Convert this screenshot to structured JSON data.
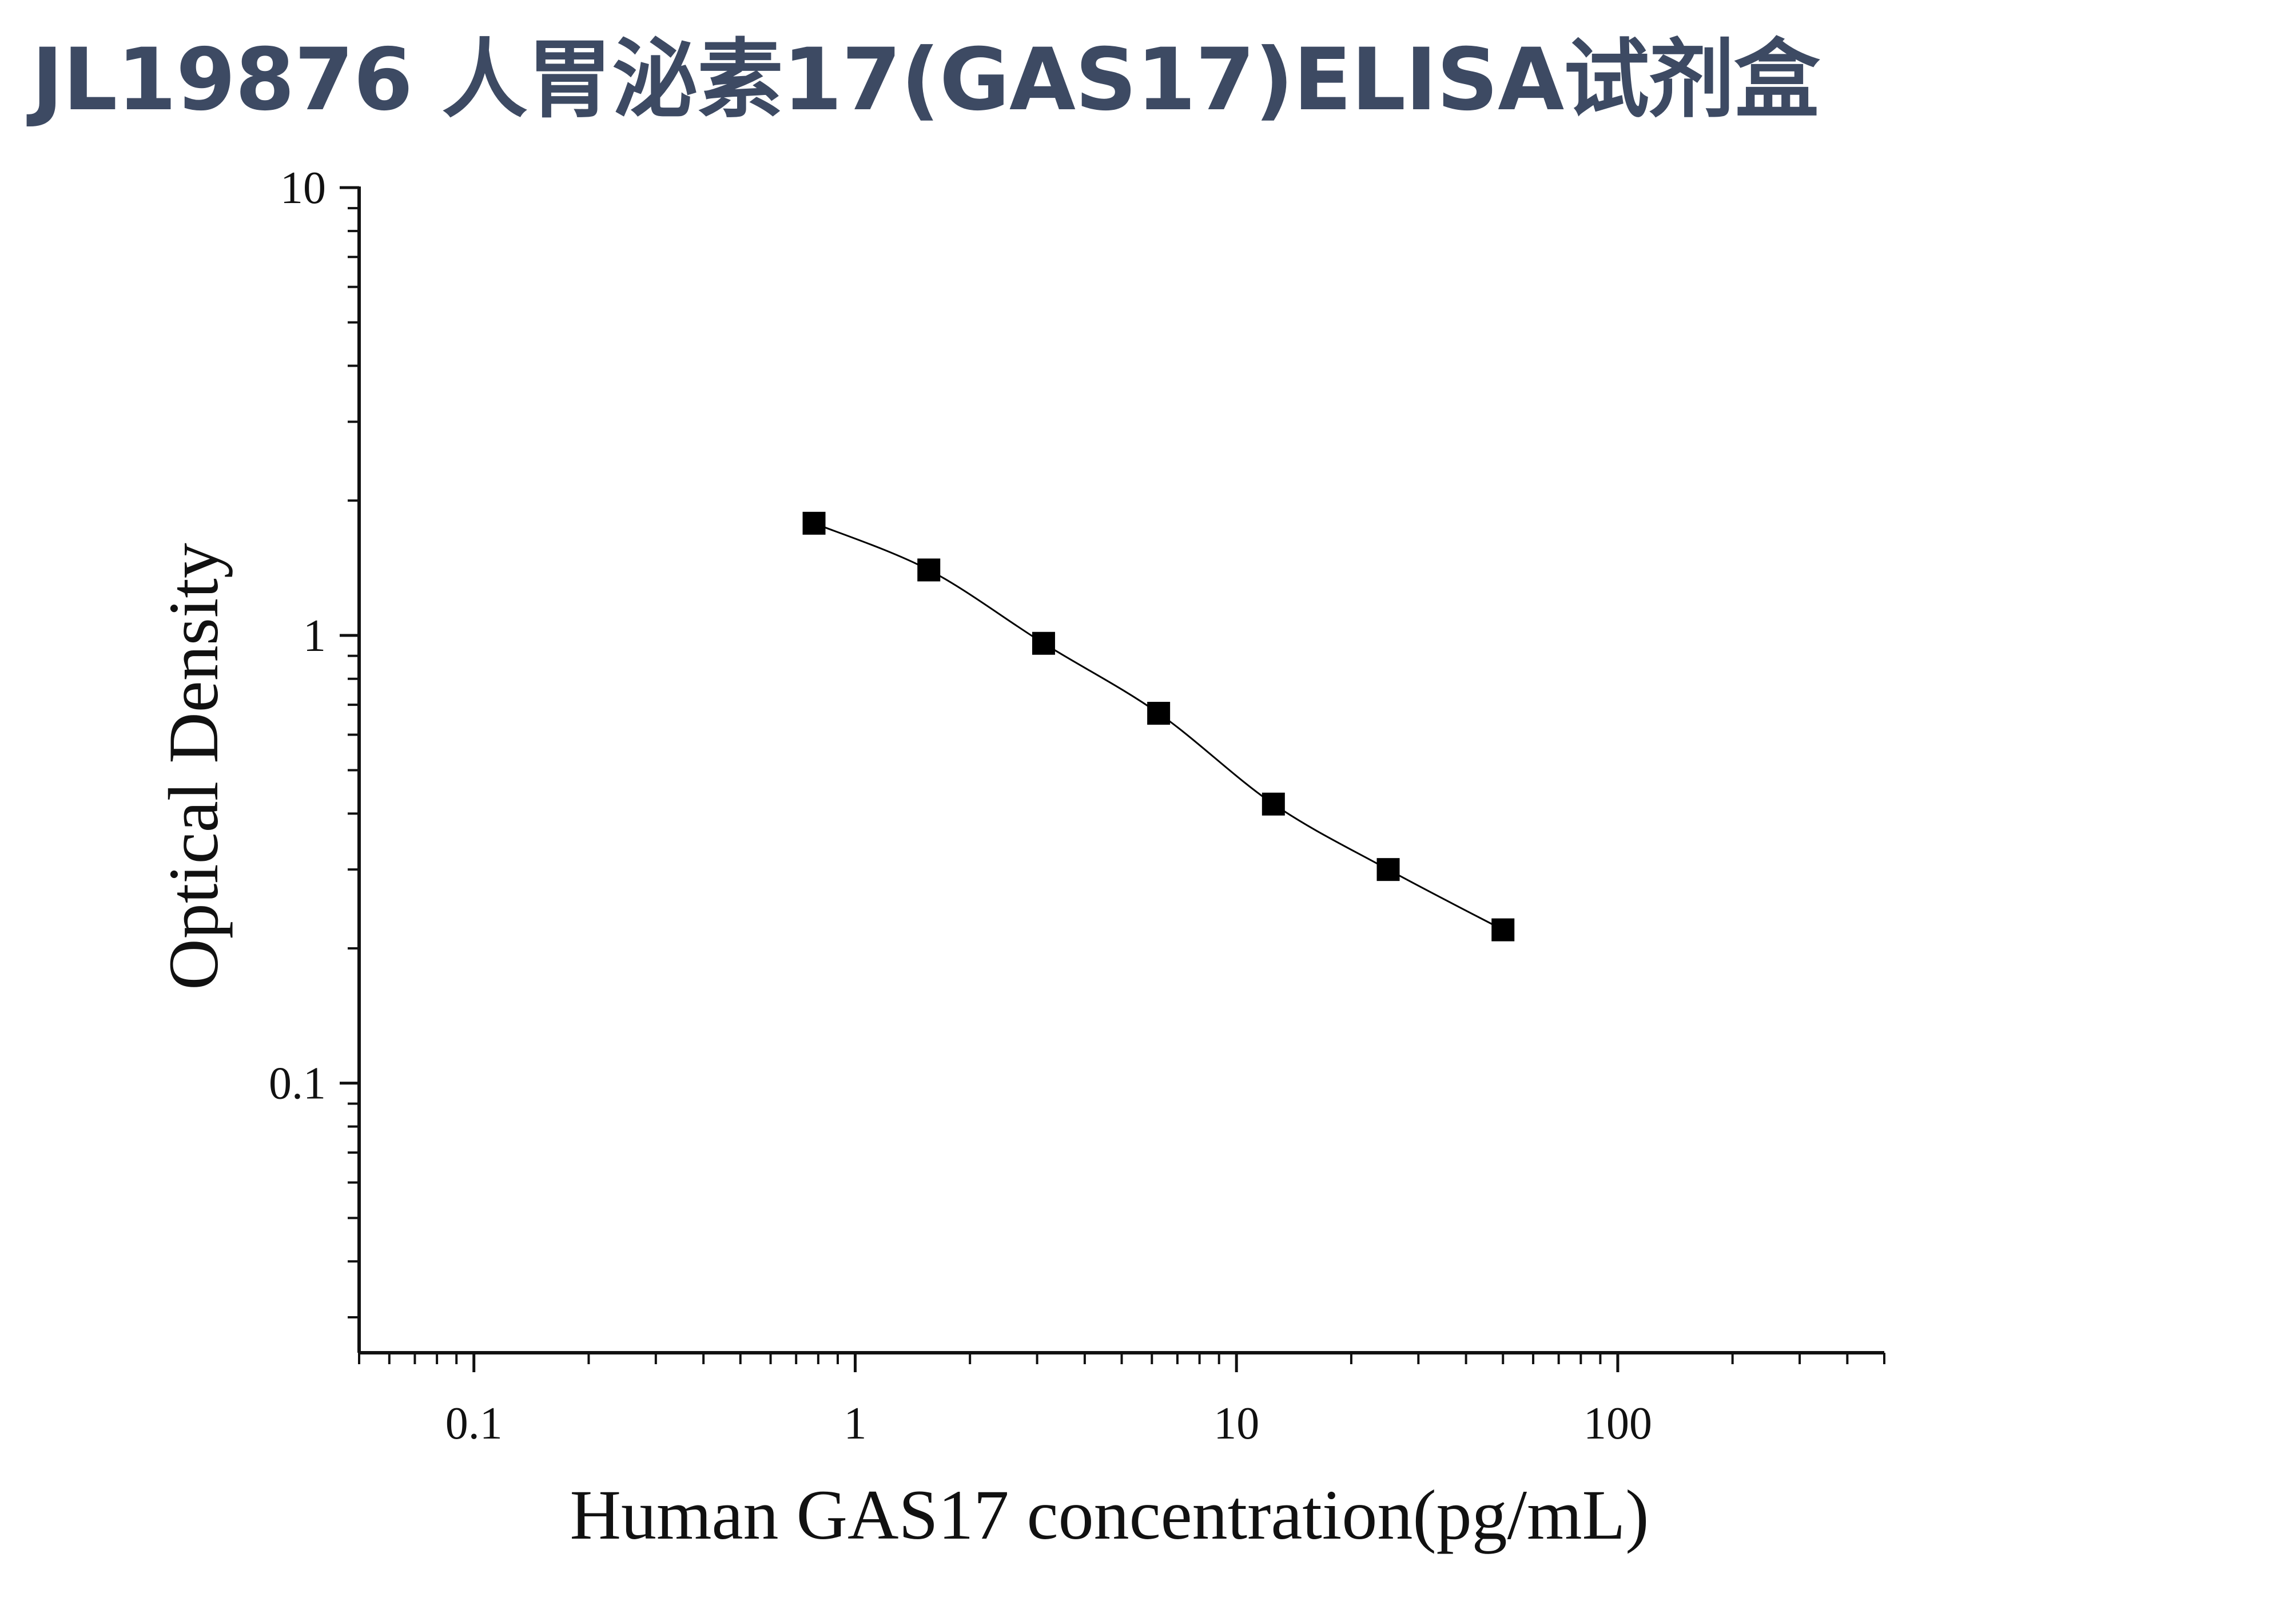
{
  "page": {
    "title": "JL19876 人胃泌素17(GAS17)ELISA试剂盒",
    "title_color": "#3d4a63"
  },
  "chart_data": {
    "type": "scatter",
    "xlabel": "Human GAS17 concentration(pg/mL)",
    "ylabel": "Optical Density",
    "x_scale": "log",
    "y_scale": "log",
    "xlim": [
      0.05,
      500
    ],
    "ylim": [
      0.025,
      10
    ],
    "x_tick_labels": [
      "0.1",
      "1",
      "10",
      "100"
    ],
    "y_tick_labels": [
      "0.1",
      "1",
      "10"
    ],
    "grid": false,
    "legend": false,
    "marker": "square",
    "marker_color": "#000000",
    "line_color": "#000000",
    "series": [
      {
        "x": [
          0.78,
          1.56,
          3.12,
          6.25,
          12.5,
          25,
          50
        ],
        "y": [
          1.78,
          1.4,
          0.96,
          0.67,
          0.42,
          0.3,
          0.22
        ]
      }
    ]
  }
}
